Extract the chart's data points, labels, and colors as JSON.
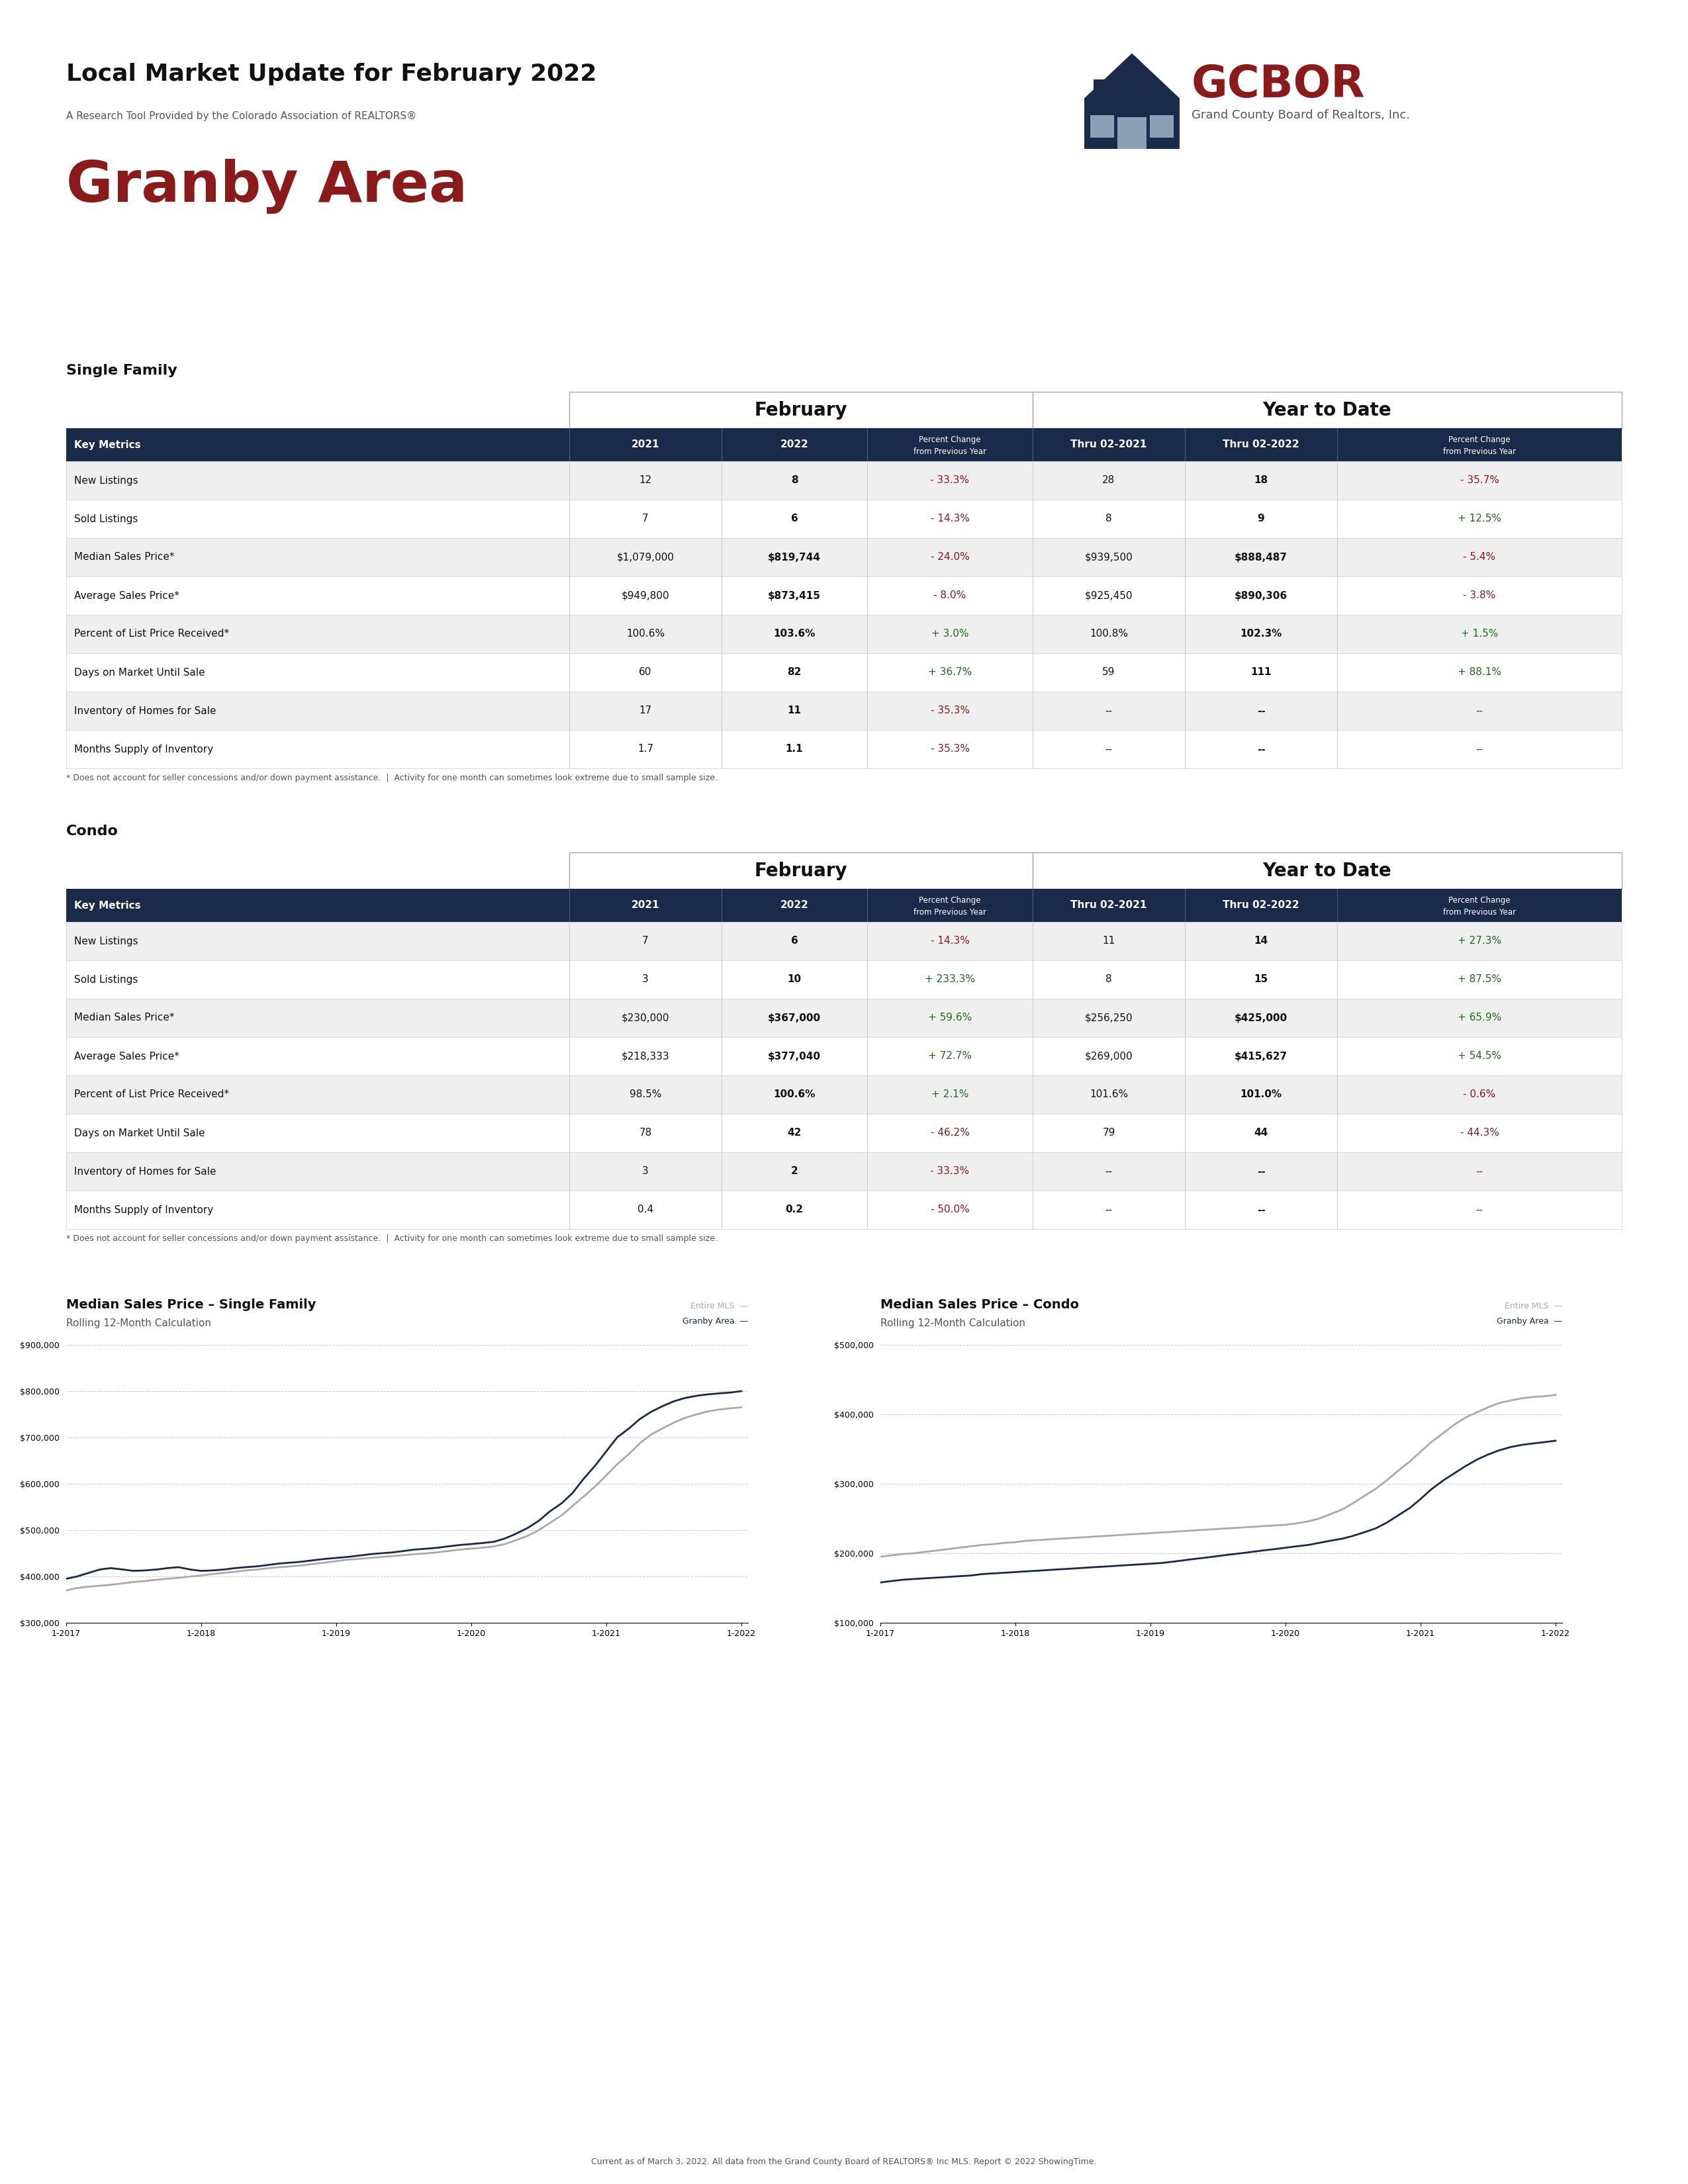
{
  "title_main": "Local Market Update for February 2022",
  "subtitle": "A Research Tool Provided by the Colorado Association of REALTORS®",
  "area_title": "Granby Area",
  "sf_table_title": "Single Family",
  "condo_table_title": "Condo",
  "february_header": "February",
  "ytd_header": "Year to Date",
  "col_headers": [
    "Key Metrics",
    "2021",
    "2022",
    "Percent Change\nfrom Previous Year",
    "Thru 02-2021",
    "Thru 02-2022",
    "Percent Change\nfrom Previous Year"
  ],
  "sf_rows": [
    [
      "New Listings",
      "12",
      "8",
      "- 33.3%",
      "28",
      "18",
      "- 35.7%"
    ],
    [
      "Sold Listings",
      "7",
      "6",
      "- 14.3%",
      "8",
      "9",
      "+ 12.5%"
    ],
    [
      "Median Sales Price*",
      "$1,079,000",
      "$819,744",
      "- 24.0%",
      "$939,500",
      "$888,487",
      "- 5.4%"
    ],
    [
      "Average Sales Price*",
      "$949,800",
      "$873,415",
      "- 8.0%",
      "$925,450",
      "$890,306",
      "- 3.8%"
    ],
    [
      "Percent of List Price Received*",
      "100.6%",
      "103.6%",
      "+ 3.0%",
      "100.8%",
      "102.3%",
      "+ 1.5%"
    ],
    [
      "Days on Market Until Sale",
      "60",
      "82",
      "+ 36.7%",
      "59",
      "111",
      "+ 88.1%"
    ],
    [
      "Inventory of Homes for Sale",
      "17",
      "11",
      "- 35.3%",
      "--",
      "--",
      "--"
    ],
    [
      "Months Supply of Inventory",
      "1.7",
      "1.1",
      "- 35.3%",
      "--",
      "--",
      "--"
    ]
  ],
  "condo_rows": [
    [
      "New Listings",
      "7",
      "6",
      "- 14.3%",
      "11",
      "14",
      "+ 27.3%"
    ],
    [
      "Sold Listings",
      "3",
      "10",
      "+ 233.3%",
      "8",
      "15",
      "+ 87.5%"
    ],
    [
      "Median Sales Price*",
      "$230,000",
      "$367,000",
      "+ 59.6%",
      "$256,250",
      "$425,000",
      "+ 65.9%"
    ],
    [
      "Average Sales Price*",
      "$218,333",
      "$377,040",
      "+ 72.7%",
      "$269,000",
      "$415,627",
      "+ 54.5%"
    ],
    [
      "Percent of List Price Received*",
      "98.5%",
      "100.6%",
      "+ 2.1%",
      "101.6%",
      "101.0%",
      "- 0.6%"
    ],
    [
      "Days on Market Until Sale",
      "78",
      "42",
      "- 46.2%",
      "79",
      "44",
      "- 44.3%"
    ],
    [
      "Inventory of Homes for Sale",
      "3",
      "2",
      "- 33.3%",
      "--",
      "--",
      "--"
    ],
    [
      "Months Supply of Inventory",
      "0.4",
      "0.2",
      "- 50.0%",
      "--",
      "--",
      "--"
    ]
  ],
  "sf_note": "* Does not account for seller concessions and/or down payment assistance.  |  Activity for one month can sometimes look extreme due to small sample size.",
  "condo_note": "* Does not account for seller concessions and/or down payment assistance.  |  Activity for one month can sometimes look extreme due to small sample size.",
  "graph1_title": "Median Sales Price – Single Family",
  "graph1_subtitle": "Rolling 12-Month Calculation",
  "graph2_title": "Median Sales Price – Condo",
  "graph2_subtitle": "Rolling 12-Month Calculation",
  "footer": "Current as of March 3, 2022. All data from the Grand County Board of REALTORS® Inc MLS. Report © 2022 ShowingTime.",
  "header_bg": "#1a2b4a",
  "alt_row_bg": "#efefef",
  "white_row_bg": "#ffffff",
  "graph1_x": [
    2017.0,
    2017.08,
    2017.17,
    2017.25,
    2017.33,
    2017.42,
    2017.5,
    2017.58,
    2017.67,
    2017.75,
    2017.83,
    2017.92,
    2018.0,
    2018.08,
    2018.17,
    2018.25,
    2018.33,
    2018.42,
    2018.5,
    2018.58,
    2018.67,
    2018.75,
    2018.83,
    2018.92,
    2019.0,
    2019.08,
    2019.17,
    2019.25,
    2019.33,
    2019.42,
    2019.5,
    2019.58,
    2019.67,
    2019.75,
    2019.83,
    2019.92,
    2020.0,
    2020.08,
    2020.17,
    2020.25,
    2020.33,
    2020.42,
    2020.5,
    2020.58,
    2020.67,
    2020.75,
    2020.83,
    2020.92,
    2021.0,
    2021.08,
    2021.17,
    2021.25,
    2021.33,
    2021.42,
    2021.5,
    2021.58,
    2021.67,
    2021.75,
    2021.83,
    2021.92,
    2022.0
  ],
  "graph1_mls": [
    370000,
    375000,
    378000,
    380000,
    382000,
    385000,
    388000,
    390000,
    393000,
    395000,
    397000,
    400000,
    402000,
    405000,
    408000,
    410000,
    413000,
    415000,
    418000,
    420000,
    422000,
    424000,
    427000,
    430000,
    433000,
    436000,
    438000,
    440000,
    442000,
    444000,
    446000,
    448000,
    450000,
    452000,
    455000,
    458000,
    460000,
    462000,
    465000,
    470000,
    478000,
    488000,
    500000,
    515000,
    532000,
    552000,
    572000,
    595000,
    618000,
    642000,
    665000,
    688000,
    706000,
    720000,
    732000,
    742000,
    750000,
    756000,
    760000,
    763000,
    765000
  ],
  "graph1_granby": [
    395000,
    400000,
    408000,
    415000,
    418000,
    415000,
    412000,
    413000,
    415000,
    418000,
    420000,
    415000,
    412000,
    413000,
    415000,
    418000,
    420000,
    422000,
    425000,
    428000,
    430000,
    432000,
    435000,
    438000,
    440000,
    442000,
    445000,
    448000,
    450000,
    452000,
    455000,
    458000,
    460000,
    462000,
    465000,
    468000,
    470000,
    472000,
    475000,
    482000,
    492000,
    505000,
    520000,
    540000,
    558000,
    580000,
    610000,
    640000,
    670000,
    700000,
    720000,
    740000,
    755000,
    768000,
    778000,
    785000,
    790000,
    793000,
    795000,
    797000,
    800000
  ],
  "graph1_ylim": [
    300000,
    900000
  ],
  "graph1_yticks": [
    300000,
    400000,
    500000,
    600000,
    700000,
    800000,
    900000
  ],
  "graph2_x": [
    2017.0,
    2017.08,
    2017.17,
    2017.25,
    2017.33,
    2017.42,
    2017.5,
    2017.58,
    2017.67,
    2017.75,
    2017.83,
    2017.92,
    2018.0,
    2018.08,
    2018.17,
    2018.25,
    2018.33,
    2018.42,
    2018.5,
    2018.58,
    2018.67,
    2018.75,
    2018.83,
    2018.92,
    2019.0,
    2019.08,
    2019.17,
    2019.25,
    2019.33,
    2019.42,
    2019.5,
    2019.58,
    2019.67,
    2019.75,
    2019.83,
    2019.92,
    2020.0,
    2020.08,
    2020.17,
    2020.25,
    2020.33,
    2020.42,
    2020.5,
    2020.58,
    2020.67,
    2020.75,
    2020.83,
    2020.92,
    2021.0,
    2021.08,
    2021.17,
    2021.25,
    2021.33,
    2021.42,
    2021.5,
    2021.58,
    2021.67,
    2021.75,
    2021.83,
    2021.92,
    2022.0
  ],
  "graph2_mls": [
    195000,
    197000,
    199000,
    200000,
    202000,
    204000,
    206000,
    208000,
    210000,
    212000,
    213000,
    215000,
    216000,
    218000,
    219000,
    220000,
    221000,
    222000,
    223000,
    224000,
    225000,
    226000,
    227000,
    228000,
    229000,
    230000,
    231000,
    232000,
    233000,
    234000,
    235000,
    236000,
    237000,
    238000,
    239000,
    240000,
    241000,
    243000,
    246000,
    250000,
    256000,
    263000,
    272000,
    282000,
    293000,
    305000,
    318000,
    332000,
    346000,
    360000,
    373000,
    385000,
    395000,
    403000,
    410000,
    416000,
    420000,
    423000,
    425000,
    426000,
    428000
  ],
  "graph2_granby": [
    158000,
    160000,
    162000,
    163000,
    164000,
    165000,
    166000,
    167000,
    168000,
    170000,
    171000,
    172000,
    173000,
    174000,
    175000,
    176000,
    177000,
    178000,
    179000,
    180000,
    181000,
    182000,
    183000,
    184000,
    185000,
    186000,
    188000,
    190000,
    192000,
    194000,
    196000,
    198000,
    200000,
    202000,
    204000,
    206000,
    208000,
    210000,
    212000,
    215000,
    218000,
    221000,
    225000,
    230000,
    236000,
    244000,
    254000,
    265000,
    278000,
    292000,
    305000,
    315000,
    325000,
    335000,
    342000,
    348000,
    353000,
    356000,
    358000,
    360000,
    362000
  ],
  "graph2_ylim": [
    100000,
    500000
  ],
  "graph2_yticks": [
    100000,
    200000,
    300000,
    400000,
    500000
  ]
}
